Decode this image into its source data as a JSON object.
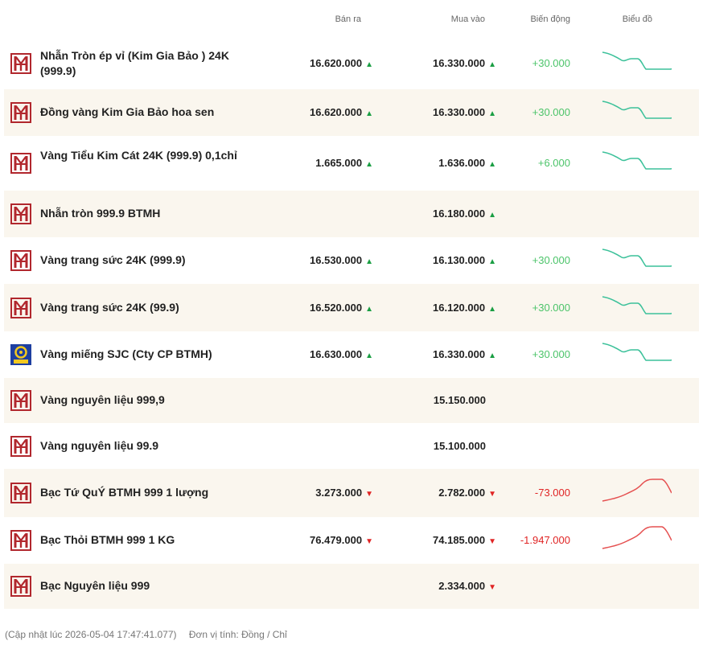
{
  "header": {
    "sell": "Bán ra",
    "buy": "Mua vào",
    "change": "Biến động",
    "chart": "Biểu đồ"
  },
  "colors": {
    "logo_btmh": "#b1272d",
    "logo_sjc": "#1e3fa0",
    "up": "#1a9e43",
    "down": "#e02424",
    "spark_up": "#3cc19a",
    "spark_down": "#e55050",
    "row_alt": "#faf6ee"
  },
  "rows": [
    {
      "name": "Nhẫn Tròn ép vỉ (Kim Gia Bảo ) 24K (999.9)",
      "sell": "16.620.000",
      "buy": "16.330.000",
      "change": "+30.000",
      "dir": "up",
      "logo": "btmh-logo-icon",
      "spark": "up"
    },
    {
      "name": "Đồng vàng Kim Gia Bảo hoa sen",
      "sell": "16.620.000",
      "buy": "16.330.000",
      "change": "+30.000",
      "dir": "up",
      "logo": "btmh-logo-icon",
      "spark": "up"
    },
    {
      "name": "Vàng Tiểu Kim Cát 24K (999.9) 0,1chỉ",
      "sell": "1.665.000",
      "buy": "1.636.000",
      "change": "+6.000",
      "dir": "up",
      "logo": "btmh-logo-icon",
      "spark": "up"
    },
    {
      "name": "Nhẫn tròn 999.9 BTMH",
      "sell": "",
      "buy": "16.180.000",
      "change": "",
      "dir": "up",
      "logo": "btmh-logo-icon",
      "spark": ""
    },
    {
      "name": "Vàng trang sức 24K (999.9)",
      "sell": "16.530.000",
      "buy": "16.130.000",
      "change": "+30.000",
      "dir": "up",
      "logo": "btmh-logo-icon",
      "spark": "up"
    },
    {
      "name": "Vàng trang sức 24K (99.9)",
      "sell": "16.520.000",
      "buy": "16.120.000",
      "change": "+30.000",
      "dir": "up",
      "logo": "btmh-logo-icon",
      "spark": "up"
    },
    {
      "name": "Vàng miếng SJC (Cty CP BTMH)",
      "sell": "16.630.000",
      "buy": "16.330.000",
      "change": "+30.000",
      "dir": "up",
      "logo": "sjc-logo-icon",
      "spark": "up"
    },
    {
      "name": "Vàng nguyên liệu 999,9",
      "sell": "",
      "buy": "15.150.000",
      "change": "",
      "dir": "none",
      "logo": "btmh-logo-icon",
      "spark": ""
    },
    {
      "name": "Vàng nguyên liệu 99.9",
      "sell": "",
      "buy": "15.100.000",
      "change": "",
      "dir": "none",
      "logo": "btmh-logo-icon",
      "spark": ""
    },
    {
      "name": "Bạc Tứ QuÝ BTMH 999 1 lượng",
      "sell": "3.273.000",
      "buy": "2.782.000",
      "change": "-73.000",
      "dir": "down",
      "logo": "btmh-logo-icon",
      "spark": "down"
    },
    {
      "name": "Bạc Thỏi BTMH 999 1 KG",
      "sell": "76.479.000",
      "buy": "74.185.000",
      "change": "-1.947.000",
      "dir": "down",
      "logo": "btmh-logo-icon",
      "spark": "down"
    },
    {
      "name": "Bạc Nguyên liệu 999",
      "sell": "",
      "buy": "2.334.000",
      "change": "",
      "dir": "down",
      "logo": "btmh-logo-icon",
      "spark": ""
    }
  ],
  "footer": {
    "updated": "(Cập nhật lúc 2026-05-04 17:47:41.077)",
    "unit": "Đơn vị tính: Đồng / Chỉ"
  }
}
